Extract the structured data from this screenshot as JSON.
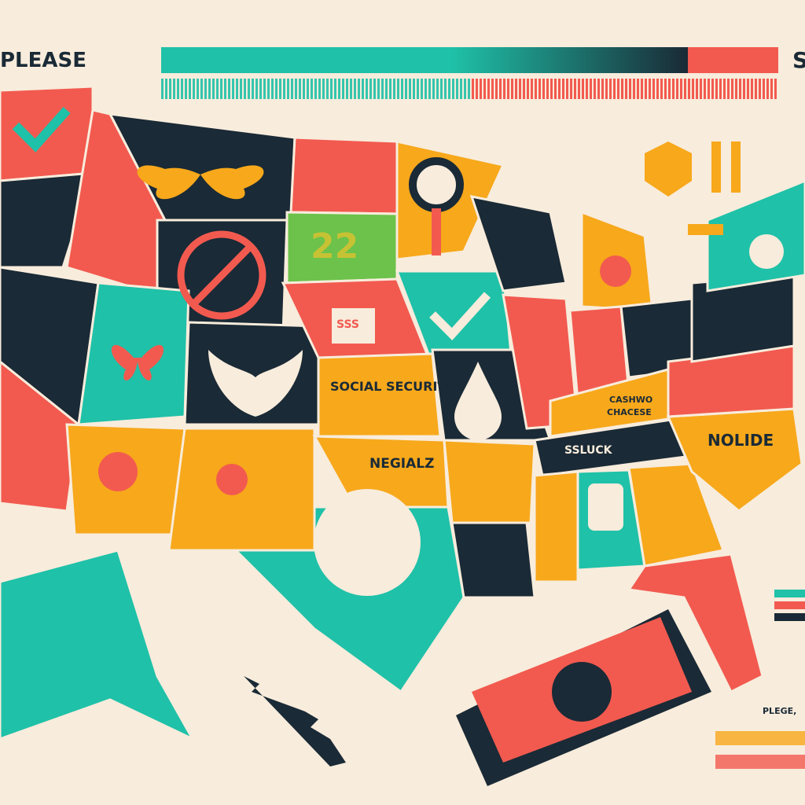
{
  "header": {
    "title_left": "PLEASE",
    "title_right": "S"
  },
  "labels": {
    "number": "22",
    "house_sign": "SSS",
    "social_security": "SOCIAL SECURITY",
    "negialz": "NEGIALZ",
    "cashwo_line1": "CASHWO",
    "cashwo_line2": "CHACESE",
    "ssluck": "SSLUCK",
    "nolide": "NOLIDE",
    "corner_note": "PLEGE,"
  },
  "icons": [
    "checkmark-icon",
    "butterfly-icon",
    "no-dollar-icon",
    "magnifier-icon",
    "house-icon",
    "dollar-drop-icon",
    "dollar-circle-icon",
    "flower-icon",
    "money-stack-icon",
    "dollar-sign-icon",
    "money-bag-icon",
    "bird-icon"
  ],
  "colors": {
    "background": "#f8ecdc",
    "teal": "#1fc1a8",
    "navy": "#1a2a36",
    "coral": "#f25a4f",
    "orange": "#f7a81b",
    "green": "#6cc24a"
  }
}
